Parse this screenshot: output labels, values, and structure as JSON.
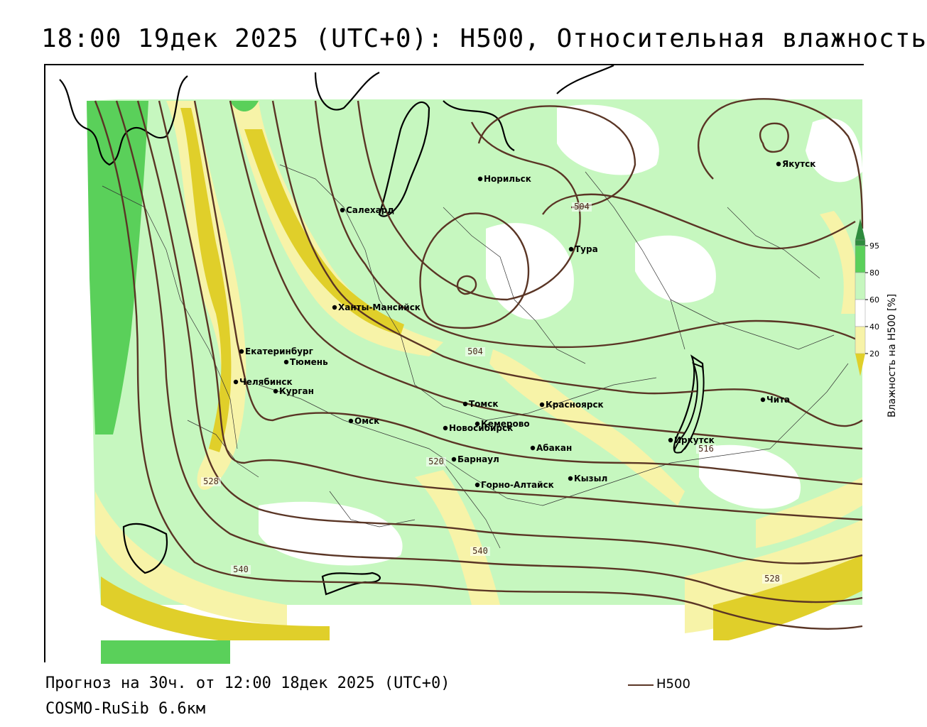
{
  "title": "18:00 19дек 2025 (UTC+0): H500, Относительная влажность",
  "footer": {
    "forecast": "Прогноз на 30ч. от 12:00 18дек 2025 (UTC+0)",
    "model": "COSMO-RuSib 6.6км"
  },
  "legend": {
    "line_label": "H500",
    "line_color": "#5a3525"
  },
  "scale": {
    "title": "Влажность на H500 [%]",
    "ticks": [
      "95",
      "80",
      "60",
      "40",
      "20"
    ],
    "colors": {
      "c95": "#2e8b3e",
      "c80": "#5ad05a",
      "c60": "#c6f7bf",
      "c40": "#ffffff",
      "c20": "#f7f3a8",
      "c0": "#e0cf2a"
    }
  },
  "cities": [
    {
      "name": "Якутск"
    },
    {
      "name": "Норильск"
    },
    {
      "name": "Салехард"
    },
    {
      "name": "Тура"
    },
    {
      "name": "Ханты-Мансийск"
    },
    {
      "name": "Екатеринбург"
    },
    {
      "name": "Тюмень"
    },
    {
      "name": "Челябинск"
    },
    {
      "name": "Курган"
    },
    {
      "name": "Омск"
    },
    {
      "name": "Новосибирск"
    },
    {
      "name": "Томск"
    },
    {
      "name": "Кемерово"
    },
    {
      "name": "Красноярск"
    },
    {
      "name": "Абакан"
    },
    {
      "name": "Барнаул"
    },
    {
      "name": "Горно-Алтайск"
    },
    {
      "name": "Кызыл"
    },
    {
      "name": "Иркутск"
    },
    {
      "name": "Чита"
    }
  ],
  "contour_labels": [
    "504",
    "504",
    "528",
    "540",
    "540",
    "528",
    "516",
    "520"
  ]
}
